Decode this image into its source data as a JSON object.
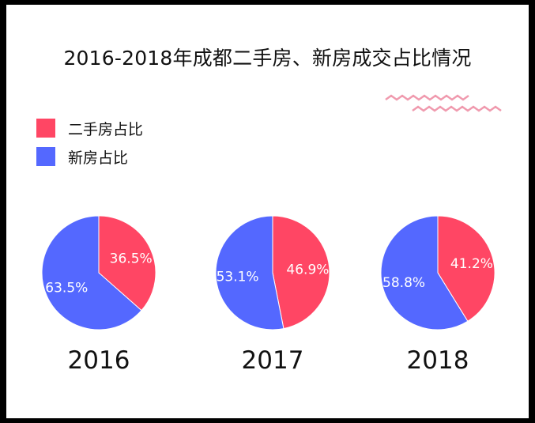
{
  "title": "2016-2018年成都二手房、新房成交占比情况",
  "colors": {
    "second_hand": "#FF4664",
    "new_house": "#5468FF",
    "deco": "#F09AAE"
  },
  "legend": [
    {
      "label": "二手房占比",
      "color": "#FF4664"
    },
    {
      "label": "新房占比",
      "color": "#5468FF"
    }
  ],
  "chart_data": [
    {
      "type": "pie",
      "label": "2016",
      "slices": [
        {
          "name": "二手房占比",
          "value": 36.5,
          "label": "36.5%"
        },
        {
          "name": "新房占比",
          "value": 63.5,
          "label": "63.5%"
        }
      ]
    },
    {
      "type": "pie",
      "label": "2017",
      "slices": [
        {
          "name": "二手房占比",
          "value": 46.9,
          "label": "46.9%"
        },
        {
          "name": "新房占比",
          "value": 53.1,
          "label": "53.1%"
        }
      ]
    },
    {
      "type": "pie",
      "label": "2018",
      "slices": [
        {
          "name": "二手房占比",
          "value": 41.2,
          "label": "41.2%"
        },
        {
          "name": "新房占比",
          "value": 58.8,
          "label": "58.8%"
        }
      ]
    }
  ]
}
